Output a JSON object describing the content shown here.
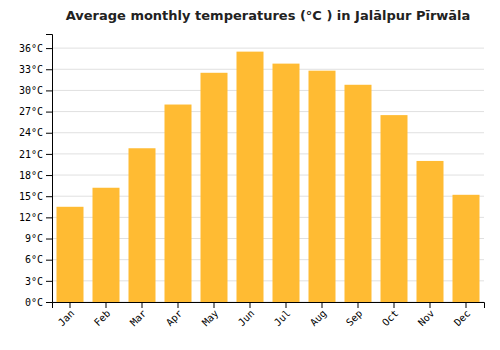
{
  "chart_data": {
    "type": "bar",
    "title": "Average monthly temperatures (°C ) in Jalālpur Pīrwāla",
    "categories": [
      "Jan",
      "Feb",
      "Mar",
      "Apr",
      "May",
      "Jun",
      "Jul",
      "Aug",
      "Sep",
      "Oct",
      "Nov",
      "Dec"
    ],
    "values": [
      13.5,
      16.2,
      21.8,
      28.0,
      32.5,
      35.5,
      33.8,
      32.8,
      30.8,
      26.5,
      20.0,
      15.2
    ],
    "color": "#FFBB33",
    "ylim": [
      0,
      38
    ],
    "yticks": [
      {
        "value": 0,
        "label": "0°C"
      },
      {
        "value": 3,
        "label": "3°C"
      },
      {
        "value": 6,
        "label": "6°C"
      },
      {
        "value": 9,
        "label": "9°C"
      },
      {
        "value": 12,
        "label": "12°C"
      },
      {
        "value": 15,
        "label": "15°C"
      },
      {
        "value": 18,
        "label": "18°C"
      },
      {
        "value": 21,
        "label": "21°C"
      },
      {
        "value": 24,
        "label": "24°C"
      },
      {
        "value": 27,
        "label": "27°C"
      },
      {
        "value": 30,
        "label": "30°C"
      },
      {
        "value": 33,
        "label": "33°C"
      },
      {
        "value": 36,
        "label": "36°C"
      }
    ],
    "grid": true
  }
}
